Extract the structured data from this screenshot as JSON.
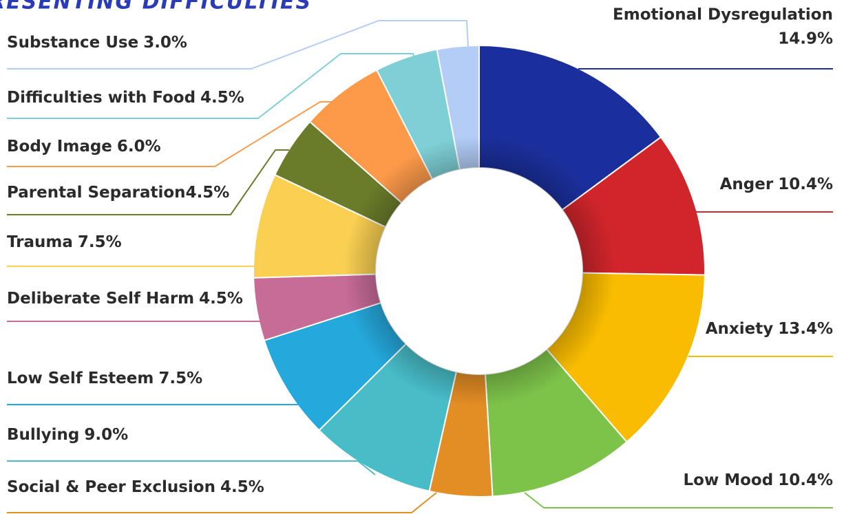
{
  "chart_data": {
    "type": "pie",
    "donut": true,
    "title": "PRESENTING DIFFICULTIES",
    "categories": [
      "Emotional Dysregulation",
      "Anger",
      "Anxiety",
      "Low Mood",
      "Social & Peer Exclusion",
      "Bullying",
      "Low Self Esteem",
      "Deliberate Self Harm",
      "Trauma",
      "Parental Separation",
      "Body Image",
      "Difficulties with Food",
      "Substance Use"
    ],
    "values": [
      14.9,
      10.4,
      13.4,
      10.4,
      4.5,
      9.0,
      7.5,
      4.5,
      7.5,
      4.5,
      6.0,
      4.5,
      3.0
    ],
    "value_labels": [
      "14.9%",
      "10.4%",
      "13.4%",
      "10.4%",
      "4.5%",
      "9.0%",
      "7.5%",
      "4.5%",
      "7.5%",
      "4.5%",
      "6.0%",
      "4.5%",
      "3.0%"
    ],
    "colors": [
      "#1b2f9c",
      "#d0252b",
      "#f9bc00",
      "#7dc34a",
      "#e38d25",
      "#48bdc8",
      "#25a8dc",
      "#c76b97",
      "#fad052",
      "#6a7c2a",
      "#fd9a4a",
      "#7fd0d6",
      "#b3cdf7"
    ]
  }
}
